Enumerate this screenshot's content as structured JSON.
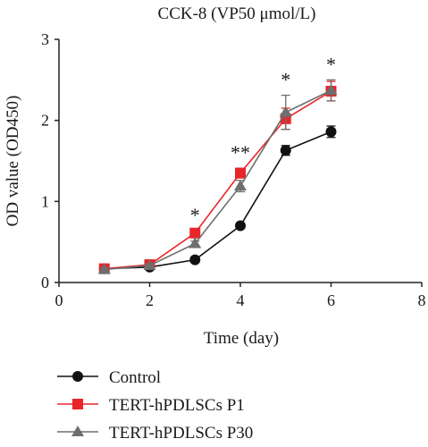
{
  "chart_data": {
    "type": "line",
    "title": "CCK-8 (VP50 μmol/L)",
    "xlabel": "Time (day)",
    "ylabel": "OD value (OD450)",
    "xlim": [
      0,
      8
    ],
    "ylim": [
      0,
      3
    ],
    "xticks": [
      0,
      2,
      4,
      6,
      8
    ],
    "yticks": [
      0,
      1,
      2,
      3
    ],
    "grid": false,
    "legend_position": "bottom",
    "series": [
      {
        "name": "Control",
        "color": "#111111",
        "marker": "circle",
        "x": [
          1,
          2,
          3,
          4,
          5,
          6
        ],
        "y": [
          0.17,
          0.19,
          0.28,
          0.7,
          1.63,
          1.86
        ],
        "err": [
          0.02,
          0.02,
          0.02,
          0.03,
          0.06,
          0.07
        ]
      },
      {
        "name": "TERT-hPDLSCs P1",
        "color": "#e8262a",
        "marker": "square",
        "x": [
          1,
          2,
          3,
          4,
          5,
          6
        ],
        "y": [
          0.17,
          0.22,
          0.61,
          1.35,
          2.02,
          2.36
        ],
        "err": [
          0.02,
          0.02,
          0.03,
          0.06,
          0.13,
          0.12
        ]
      },
      {
        "name": "TERT-hPDLSCs P30",
        "color": "#6e6e6e",
        "marker": "triangle",
        "x": [
          1,
          2,
          3,
          4,
          5,
          6
        ],
        "y": [
          0.16,
          0.21,
          0.48,
          1.19,
          2.1,
          2.37
        ],
        "err": [
          0.02,
          0.02,
          0.03,
          0.07,
          0.21,
          0.13
        ]
      }
    ],
    "annotations": [
      {
        "x": 3,
        "text": "*"
      },
      {
        "x": 4,
        "text": "**"
      },
      {
        "x": 5,
        "text": "*"
      },
      {
        "x": 6,
        "text": "*"
      }
    ]
  }
}
